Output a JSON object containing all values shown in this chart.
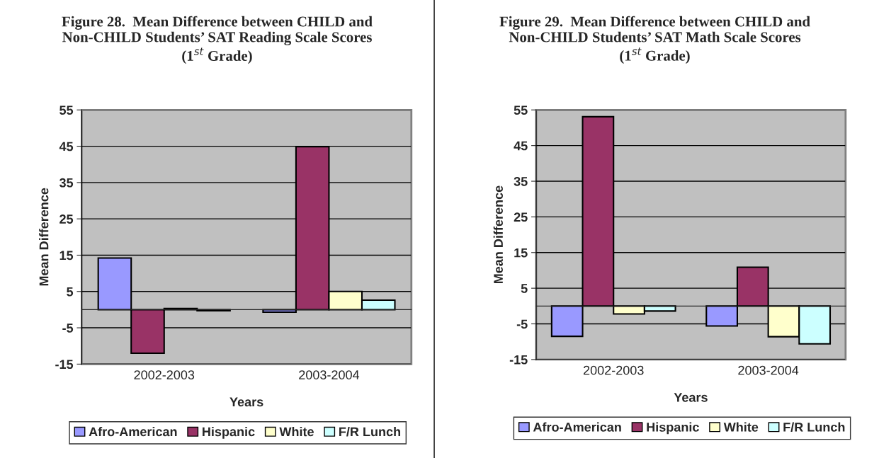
{
  "chart_data": [
    {
      "type": "bar",
      "title": "Figure 28.  Mean Difference between CHILD and\nNon-CHILD Students’ SAT Reading Scale Scores\n(1$^{st}$ Grade)",
      "xlabel": "Years",
      "ylabel": "Mean Difference",
      "categories": [
        "2002-2003",
        "2003-2004"
      ],
      "series": [
        {
          "name": "Afro-American",
          "color": "#9999ff",
          "values": [
            14.2,
            -0.7
          ]
        },
        {
          "name": "Hispanic",
          "color": "#993366",
          "values": [
            -12.0,
            44.9
          ]
        },
        {
          "name": "White",
          "color": "#ffffcc",
          "values": [
            0.3,
            5.0
          ]
        },
        {
          "name": "F/R Lunch",
          "color": "#ccffff",
          "values": [
            -0.3,
            2.6
          ]
        }
      ],
      "ylim": [
        -15,
        55
      ],
      "yticks": [
        -15,
        -5,
        5,
        15,
        25,
        35,
        45,
        55
      ],
      "grid": "y",
      "legend": "bottom"
    },
    {
      "type": "bar",
      "title": "Figure 29.  Mean Difference between CHILD and\nNon-CHILD Students’ SAT Math Scale Scores\n(1$^{st}$ Grade)",
      "xlabel": "Years",
      "ylabel": "Mean Difference",
      "categories": [
        "2002-2003",
        "2003-2004"
      ],
      "series": [
        {
          "name": "Afro-American",
          "color": "#9999ff",
          "values": [
            -8.5,
            -5.6
          ]
        },
        {
          "name": "Hispanic",
          "color": "#993366",
          "values": [
            53.1,
            10.9
          ]
        },
        {
          "name": "White",
          "color": "#ffffcc",
          "values": [
            -2.2,
            -8.6
          ]
        },
        {
          "name": "F/R Lunch",
          "color": "#ccffff",
          "values": [
            -1.4,
            -10.6
          ]
        }
      ],
      "ylim": [
        -15,
        55
      ],
      "yticks": [
        -15,
        -5,
        5,
        15,
        25,
        35,
        45,
        55
      ],
      "grid": "y",
      "legend": "bottom"
    }
  ]
}
